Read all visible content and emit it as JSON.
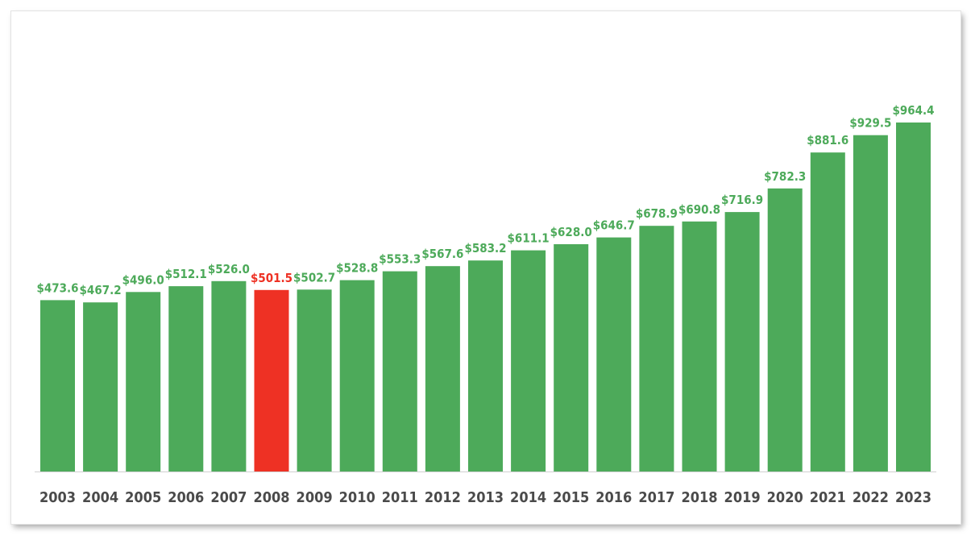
{
  "chart_data": {
    "type": "bar",
    "title": "",
    "xlabel": "",
    "ylabel": "",
    "categories": [
      "2003",
      "2004",
      "2005",
      "2006",
      "2007",
      "2008",
      "2009",
      "2010",
      "2011",
      "2012",
      "2013",
      "2014",
      "2015",
      "2016",
      "2017",
      "2018",
      "2019",
      "2020",
      "2021",
      "2022",
      "2023"
    ],
    "values": [
      473.6,
      467.2,
      496.0,
      512.1,
      526.0,
      501.5,
      502.7,
      528.8,
      553.3,
      567.6,
      583.2,
      611.1,
      628.0,
      646.7,
      678.9,
      690.8,
      716.9,
      782.3,
      881.6,
      929.5,
      964.4
    ],
    "value_labels": [
      "$473.6",
      "$467.2",
      "$496.0",
      "$512.1",
      "$526.0",
      "$501.5",
      "$502.7",
      "$528.8",
      "$553.3",
      "$567.6",
      "$583.2",
      "$611.1",
      "$628.0",
      "$646.7",
      "$678.9",
      "$690.8",
      "$716.9",
      "$782.3",
      "$881.6",
      "$929.5",
      "$964.4"
    ],
    "ylim": [
      0,
      964.4
    ],
    "grid": false,
    "legend": "none",
    "colors": {
      "bar": "#4daa5a",
      "highlight": "#ee3124",
      "label": "#4daa5a",
      "highlight_label": "#ee3124",
      "axis": "#d0d0d0"
    },
    "highlight_category": "2008"
  }
}
